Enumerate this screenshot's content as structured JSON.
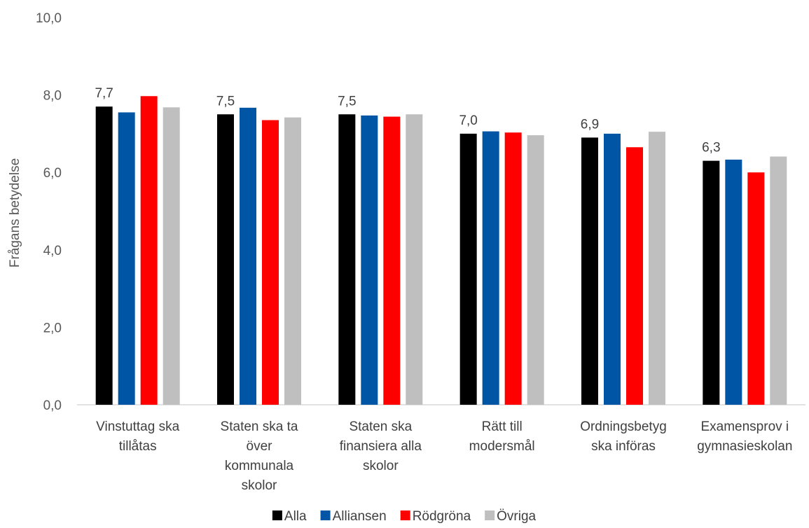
{
  "chart_data": {
    "type": "bar",
    "title": "",
    "xlabel": "",
    "ylabel": "Frågans betydelse",
    "ylim": [
      0,
      10
    ],
    "yticks": [
      "0,0",
      "2,0",
      "4,0",
      "6,0",
      "8,0",
      "10,0"
    ],
    "ytick_values": [
      0,
      2,
      4,
      6,
      8,
      10
    ],
    "grid": false,
    "legend_position": "bottom-center",
    "categories": [
      [
        "Vinstuttag ska",
        "tillåtas"
      ],
      [
        "Staten ska ta",
        "över",
        "kommunala",
        "skolor"
      ],
      [
        "Staten ska",
        "finansiera alla",
        "skolor"
      ],
      [
        "Rätt till",
        "modersmål"
      ],
      [
        "Ordningsbetyg",
        "ska införas"
      ],
      [
        "Examensprov i",
        "gymnasieskolan"
      ]
    ],
    "series": [
      {
        "name": "Alla",
        "color": "#000000",
        "values": [
          7.7,
          7.5,
          7.5,
          7.0,
          6.9,
          6.3
        ],
        "labels": [
          "7,7",
          "7,5",
          "7,5",
          "7,0",
          "6,9",
          "6,3"
        ]
      },
      {
        "name": "Alliansen",
        "color": "#0055A4",
        "values": [
          7.55,
          7.67,
          7.47,
          7.06,
          7.0,
          6.33
        ],
        "labels": null
      },
      {
        "name": "Rödgröna",
        "color": "#FF0000",
        "values": [
          7.97,
          7.35,
          7.44,
          7.03,
          6.65,
          6.0
        ],
        "labels": null
      },
      {
        "name": "Övriga",
        "color": "#BFBFBF",
        "values": [
          7.68,
          7.42,
          7.5,
          6.96,
          7.05,
          6.41
        ],
        "labels": null
      }
    ]
  }
}
